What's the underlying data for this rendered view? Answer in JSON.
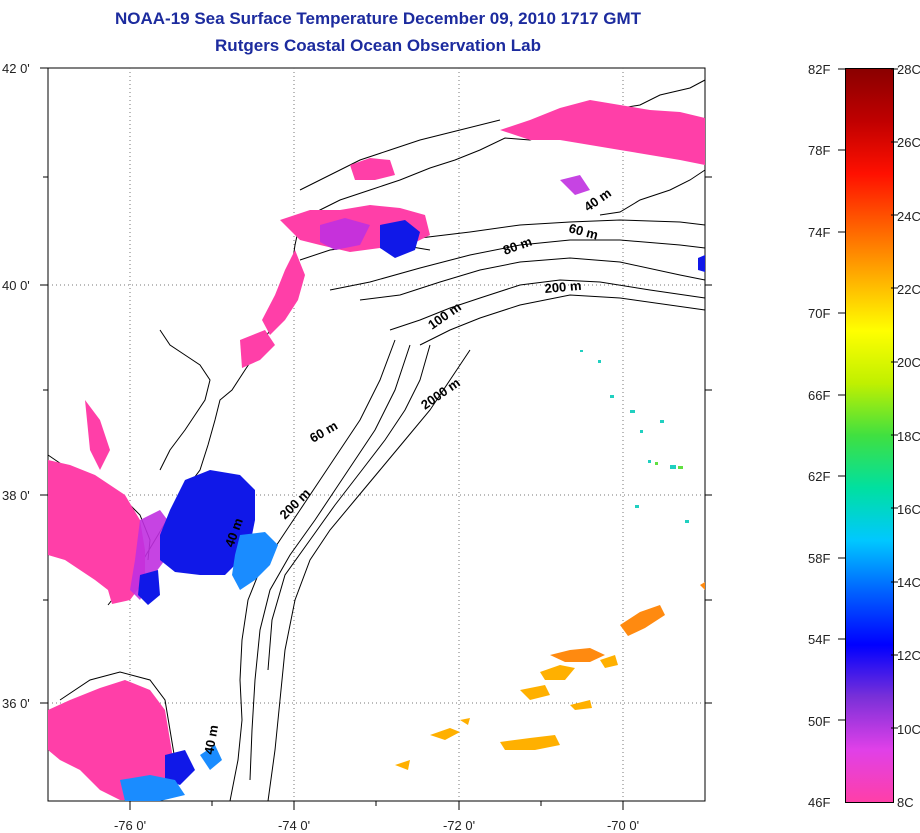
{
  "title": {
    "line1": "NOAA-19 Sea Surface Temperature December 09, 2010 1717 GMT",
    "line2": "Rutgers Coastal Ocean Observation Lab"
  },
  "map": {
    "x_ticks": [
      "-76 0'",
      "-74 0'",
      "-72 0'",
      "-70 0'"
    ],
    "y_ticks": [
      "42 0'",
      "40 0'",
      "38 0'",
      "36 0'"
    ],
    "contour_labels": [
      "40 m",
      "60 m",
      "80 m",
      "200 m",
      "100 m",
      "2000 m",
      "60 m",
      "200 m",
      "40 m",
      "40 m"
    ]
  },
  "colorbar": {
    "fahrenheit": [
      "82F",
      "78F",
      "74F",
      "70F",
      "66F",
      "62F",
      "58F",
      "54F",
      "50F",
      "46F"
    ],
    "celsius": [
      "28C",
      "26C",
      "24C",
      "22C",
      "20C",
      "18C",
      "16C",
      "14C",
      "12C",
      "10C",
      "8C"
    ],
    "colors": [
      "#ff3fa8",
      "#e040e8",
      "#7a30d8",
      "#0000ff",
      "#0060ff",
      "#00c8ff",
      "#00e0a0",
      "#40e040",
      "#c0f000",
      "#ffff00",
      "#ffb000",
      "#ff6000",
      "#ff1000",
      "#c00000",
      "#8a0000"
    ]
  }
}
